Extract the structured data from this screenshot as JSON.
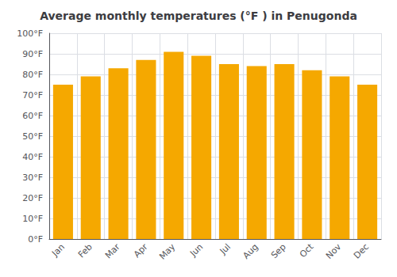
{
  "chart_data": {
    "type": "bar",
    "title": "Average monthly temperatures (°F ) in Penugonda",
    "categories": [
      "Jan",
      "Feb",
      "Mar",
      "Apr",
      "May",
      "Jun",
      "Jul",
      "Aug",
      "Sep",
      "Oct",
      "Nov",
      "Dec"
    ],
    "values": [
      75,
      79,
      83,
      87,
      91,
      89,
      85,
      84,
      85,
      82,
      79,
      75
    ],
    "color": "#F5A800",
    "ylim": [
      0,
      100
    ],
    "yticks": [
      {
        "value": 0,
        "label": "0°F"
      },
      {
        "value": 10,
        "label": "10°F"
      },
      {
        "value": 20,
        "label": "20°F"
      },
      {
        "value": 30,
        "label": "30°F"
      },
      {
        "value": 40,
        "label": "40°F"
      },
      {
        "value": 50,
        "label": "50°F"
      },
      {
        "value": 60,
        "label": "60°F"
      },
      {
        "value": 70,
        "label": "70°F"
      },
      {
        "value": 80,
        "label": "80°F"
      },
      {
        "value": 90,
        "label": "90°F"
      },
      {
        "value": 100,
        "label": "100°F"
      }
    ],
    "grid": true
  }
}
